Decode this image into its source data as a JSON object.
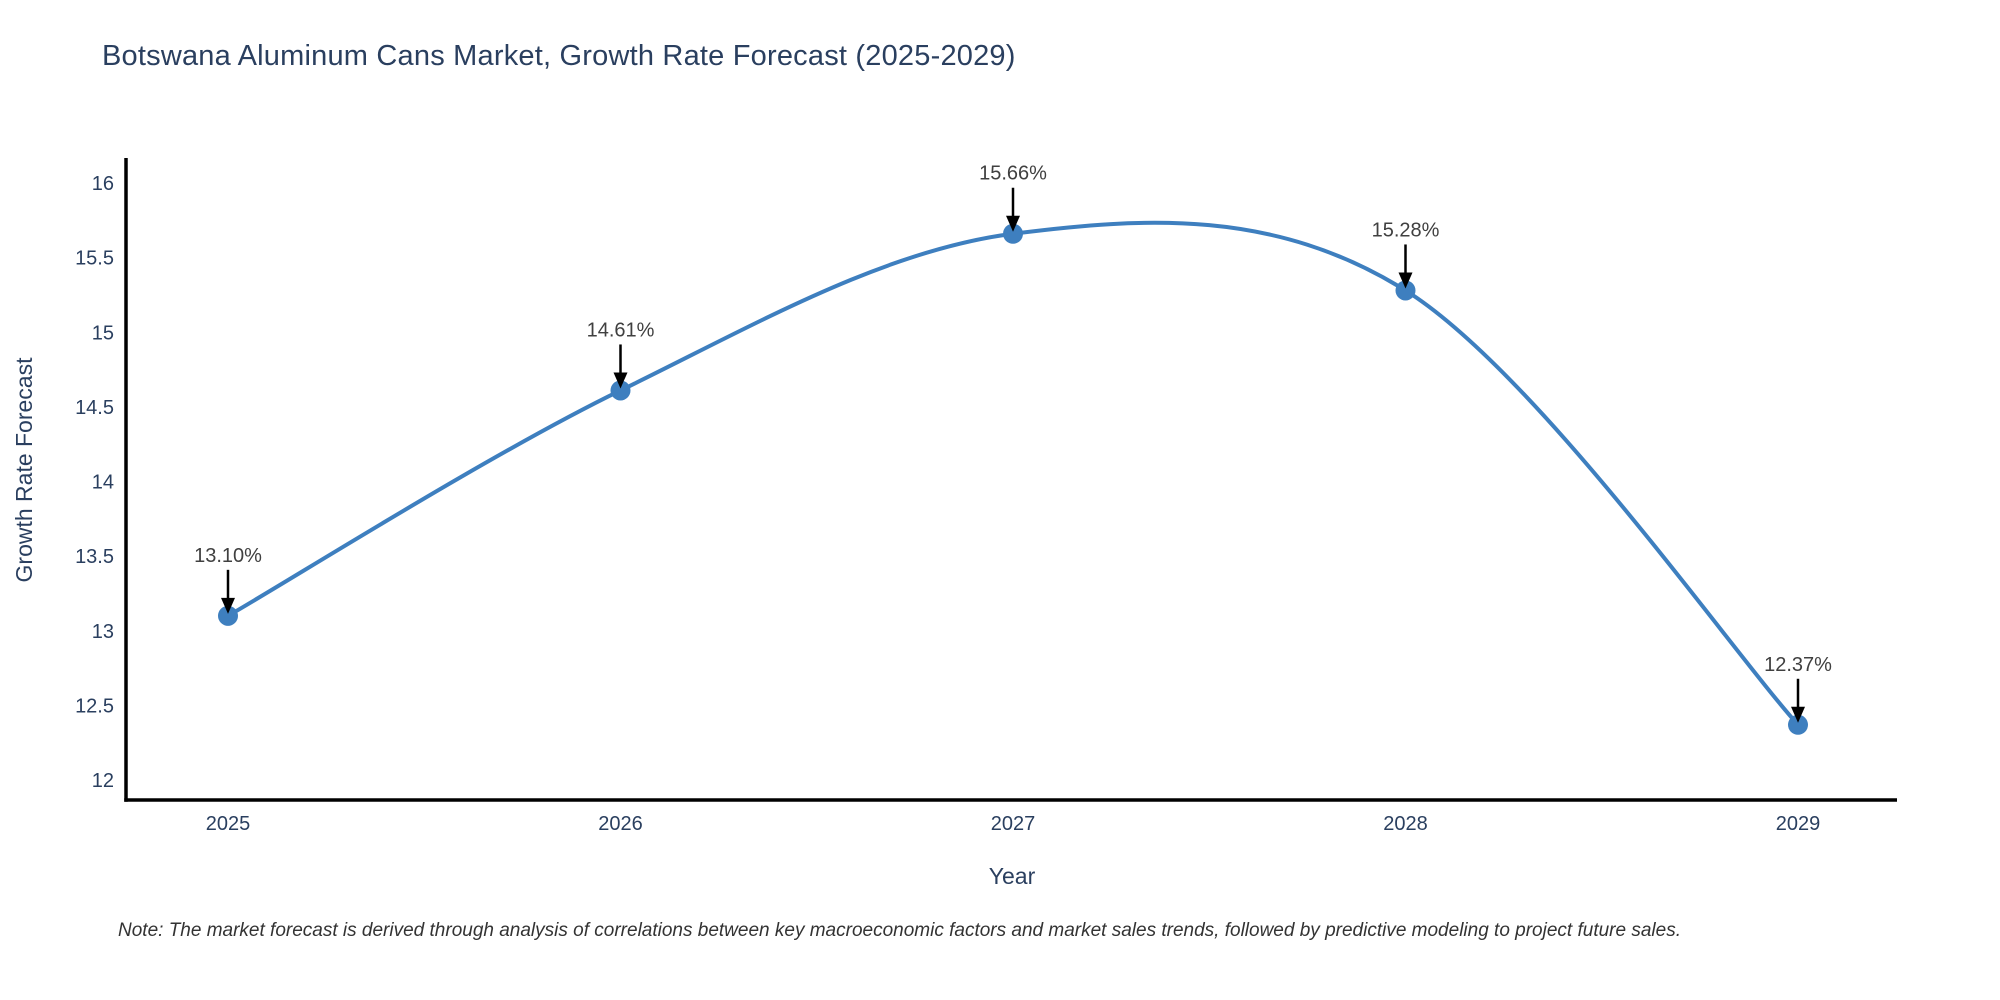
{
  "chart_data": {
    "type": "line",
    "title": "Botswana Aluminum Cans Market, Growth Rate Forecast (2025-2029)",
    "x": [
      2025,
      2026,
      2027,
      2028,
      2029
    ],
    "values": [
      13.1,
      14.61,
      15.66,
      15.28,
      12.37
    ],
    "point_labels": [
      "13.10%",
      "14.61%",
      "15.66%",
      "15.28%",
      "12.37%"
    ],
    "xlabel": "Year",
    "ylabel": "Growth Rate Forecast",
    "xticks": [
      "2025",
      "2026",
      "2027",
      "2028",
      "2029"
    ],
    "yticks": [
      "12",
      "12.5",
      "13",
      "13.5",
      "14",
      "14.5",
      "15",
      "15.5",
      "16"
    ],
    "ylim": [
      11.87,
      16.17
    ],
    "line_shape": "spline",
    "grid": false,
    "legend": "none",
    "note": "Note: The market forecast is derived through analysis of correlations between key macroeconomic factors and market sales trends, followed by predictive modeling to project future sales.",
    "colors": {
      "line": "#3E7FBF",
      "marker": "#3E7FBF",
      "axis": "#000000",
      "text": "#2a3f5f",
      "annotation_text": "#404040",
      "arrow": "#000000",
      "background": "#ffffff"
    }
  }
}
